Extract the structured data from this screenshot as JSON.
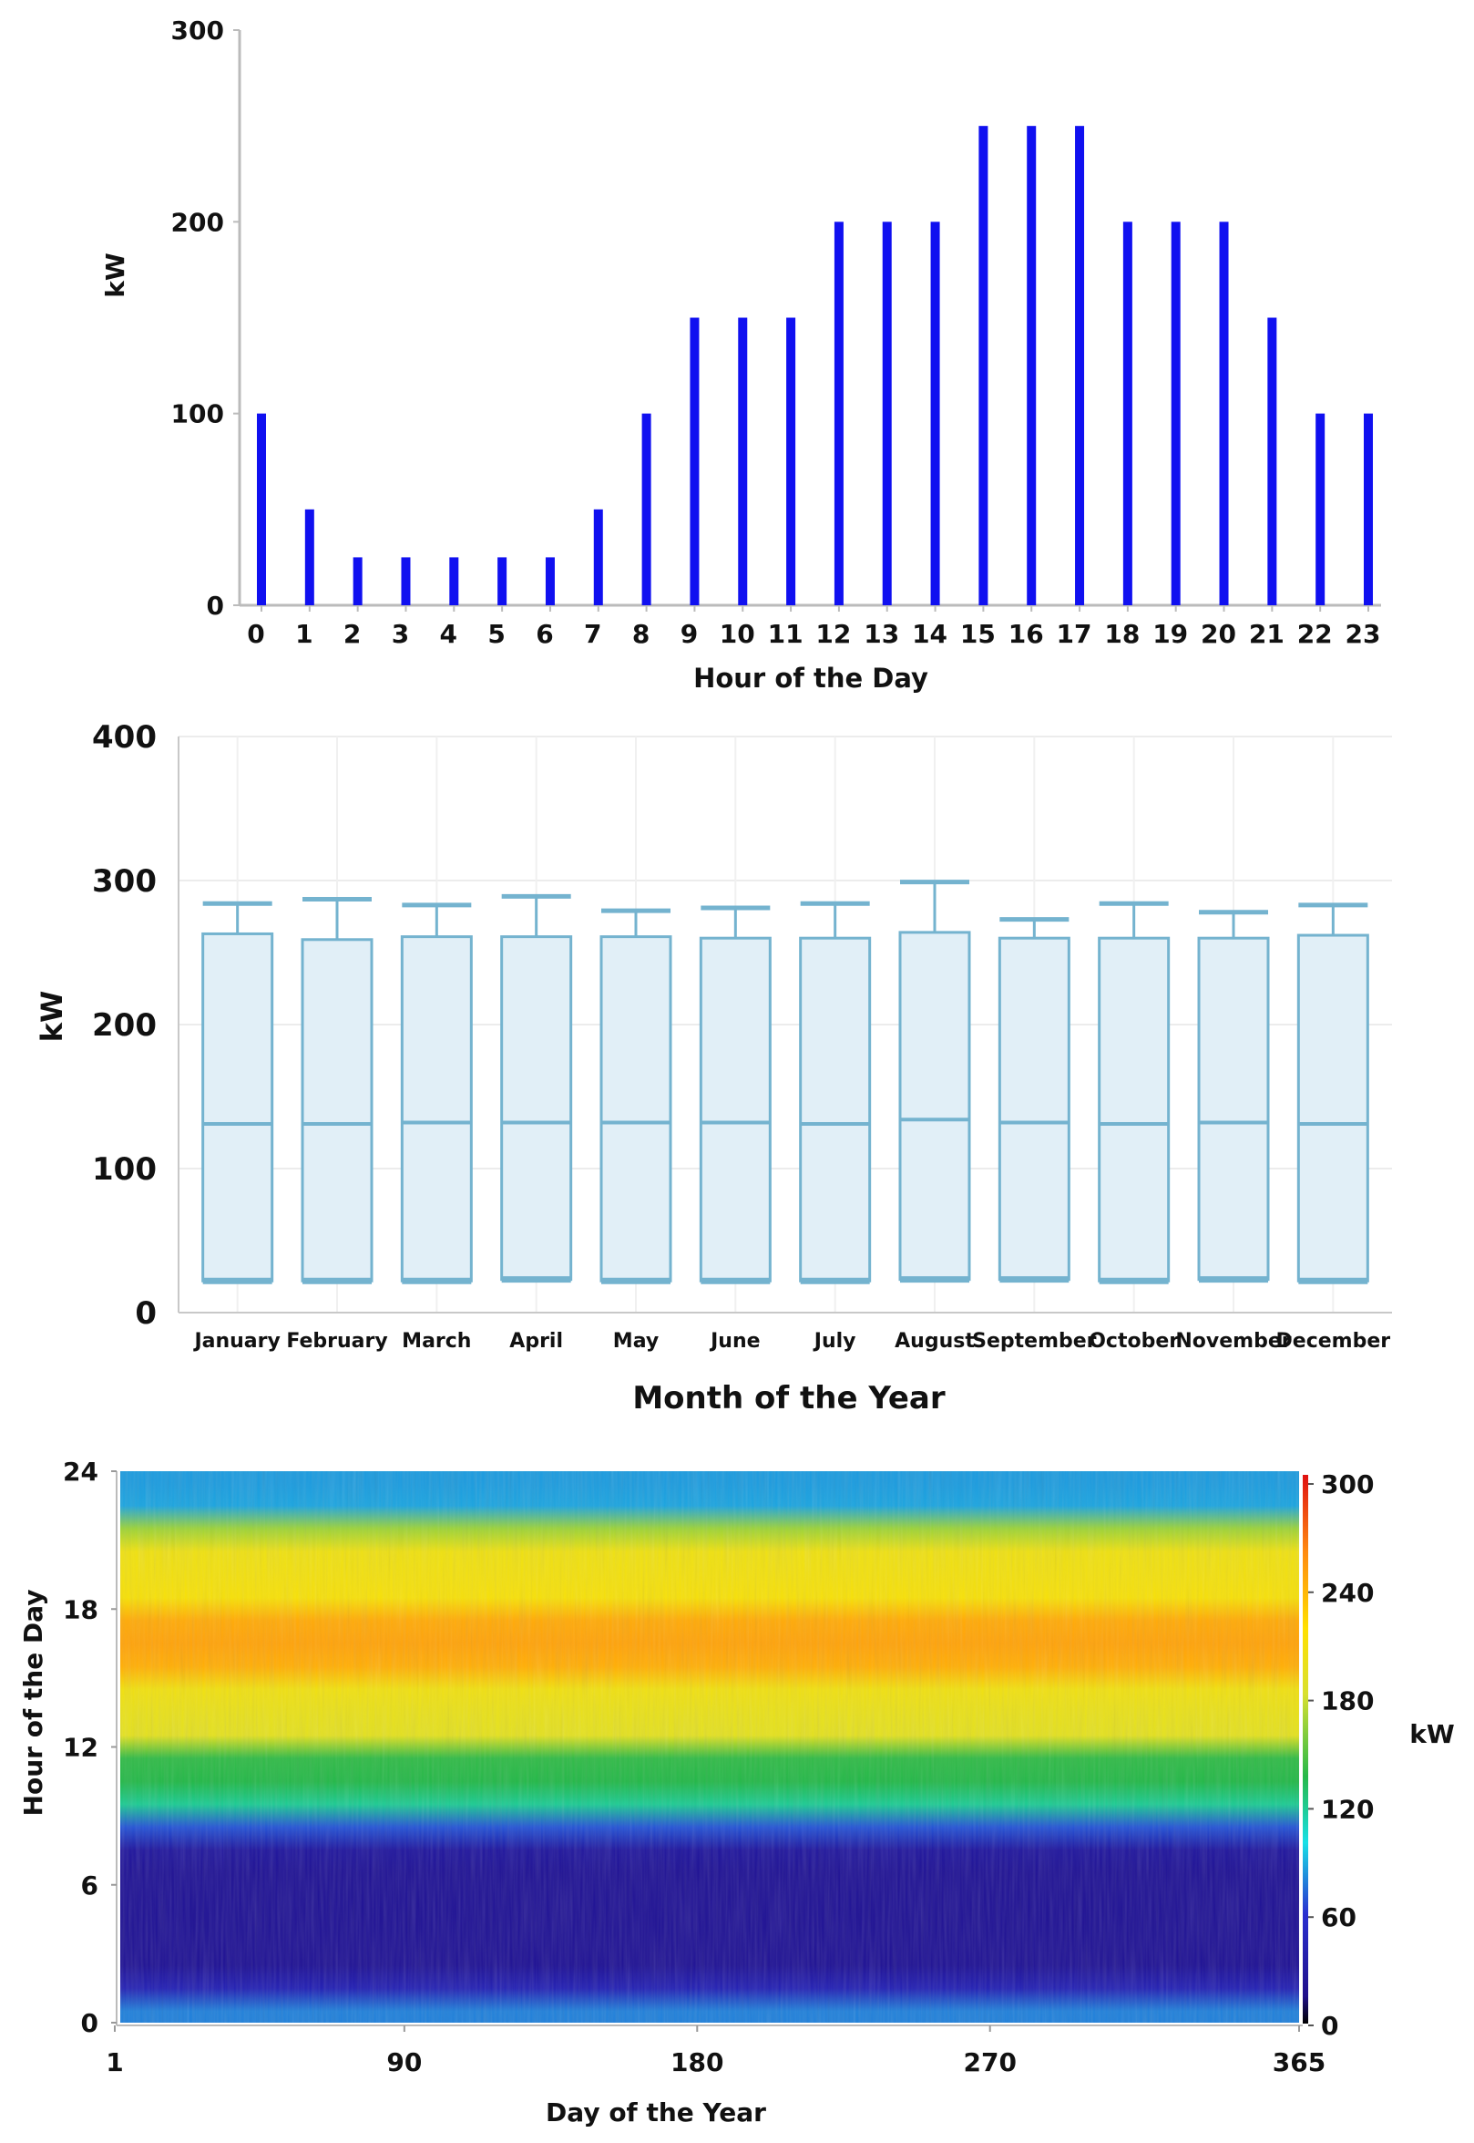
{
  "chart_data": [
    {
      "type": "bar",
      "xlabel": "Hour of the Day",
      "ylabel": "kW",
      "ylim": [
        0,
        300
      ],
      "yticks": [
        "0",
        "100",
        "200",
        "300"
      ],
      "categories": [
        "0",
        "1",
        "2",
        "3",
        "4",
        "5",
        "6",
        "7",
        "8",
        "9",
        "10",
        "11",
        "12",
        "13",
        "14",
        "15",
        "16",
        "17",
        "18",
        "19",
        "20",
        "21",
        "22",
        "23"
      ],
      "values": [
        100,
        50,
        25,
        25,
        25,
        25,
        25,
        50,
        100,
        150,
        150,
        150,
        200,
        200,
        200,
        250,
        250,
        250,
        200,
        200,
        200,
        150,
        100,
        100
      ],
      "bar_color": "#1010f0"
    },
    {
      "type": "box",
      "xlabel": "Month of the Year",
      "ylabel": "kW",
      "ylim": [
        0,
        400
      ],
      "yticks": [
        "0",
        "100",
        "200",
        "300",
        "400"
      ],
      "grid": true,
      "categories": [
        "January",
        "February",
        "March",
        "April",
        "May",
        "June",
        "July",
        "August",
        "September",
        "October",
        "November",
        "December"
      ],
      "series": [
        {
          "name": "q1",
          "values": [
            22,
            22,
            22,
            23,
            22,
            22,
            22,
            23,
            23,
            22,
            23,
            22
          ]
        },
        {
          "name": "median",
          "values": [
            131,
            131,
            132,
            132,
            132,
            132,
            131,
            134,
            132,
            131,
            132,
            131
          ]
        },
        {
          "name": "q3",
          "values": [
            263,
            259,
            261,
            261,
            261,
            260,
            260,
            264,
            260,
            260,
            260,
            262
          ]
        },
        {
          "name": "whisker_hi",
          "values": [
            284,
            287,
            283,
            289,
            279,
            281,
            284,
            299,
            273,
            284,
            278,
            283
          ]
        }
      ],
      "box_fill": "#e1eff7",
      "box_stroke": "#74b3cf"
    },
    {
      "type": "heatmap",
      "xlabel": "Day of the Year",
      "ylabel": "Hour of the Day",
      "xlim": [
        1,
        365
      ],
      "ylim": [
        0,
        24
      ],
      "xticks": [
        "1",
        "90",
        "180",
        "270",
        "365"
      ],
      "yticks": [
        "0",
        "6",
        "12",
        "18",
        "24"
      ],
      "colorbar": {
        "label": "kW",
        "range": [
          0,
          300
        ],
        "ticks": [
          "0",
          "60",
          "120",
          "180",
          "240",
          "300"
        ]
      },
      "hourly_profile_kw": [
        78,
        42,
        22,
        22,
        22,
        22,
        22,
        28,
        68,
        118,
        135,
        138,
        190,
        195,
        202,
        240,
        246,
        242,
        208,
        204,
        200,
        165,
        86,
        84
      ]
    }
  ]
}
